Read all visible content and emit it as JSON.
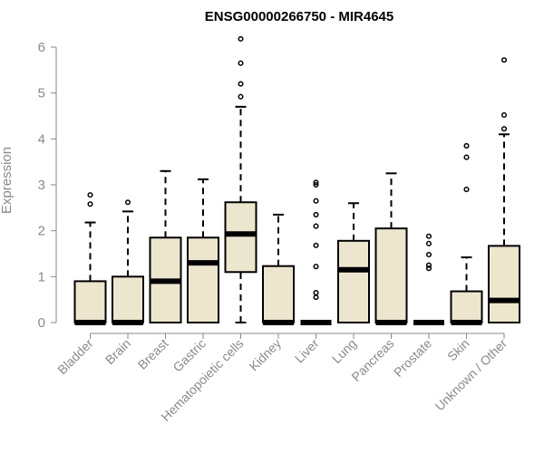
{
  "chart_data": {
    "type": "box",
    "title": "ENSG00000266750 - MIR4645",
    "xlabel": "",
    "ylabel": "Expression",
    "ylim": [
      0,
      6
    ],
    "yticks": [
      0,
      1,
      2,
      3,
      4,
      5,
      6
    ],
    "grid": false,
    "legend": "none",
    "box_fill_color": "#ede6cf",
    "box_stroke_color": "#000000",
    "categories": [
      "Bladder",
      "Brain",
      "Breast",
      "Gastric",
      "Hematopoietic cells",
      "Kidney",
      "Liver",
      "Lung",
      "Pancreas",
      "Prostate",
      "Skin",
      "Unknown / Other"
    ],
    "boxes": [
      {
        "category": "Bladder",
        "whisker_low": 0,
        "q1": 0,
        "median": 0,
        "q3": 0.9,
        "whisker_high": 2.18,
        "outliers": [
          2.58,
          2.78
        ]
      },
      {
        "category": "Brain",
        "whisker_low": 0,
        "q1": 0,
        "median": 0,
        "q3": 1.0,
        "whisker_high": 2.42,
        "outliers": [
          2.62
        ]
      },
      {
        "category": "Breast",
        "whisker_low": 0,
        "q1": 0,
        "median": 0.9,
        "q3": 1.85,
        "whisker_high": 3.3,
        "outliers": []
      },
      {
        "category": "Gastric",
        "whisker_low": 0,
        "q1": 0,
        "median": 1.3,
        "q3": 1.85,
        "whisker_high": 3.12,
        "outliers": []
      },
      {
        "category": "Hematopoietic cells",
        "whisker_low": 0,
        "q1": 1.1,
        "median": 1.93,
        "q3": 2.62,
        "whisker_high": 4.7,
        "outliers": [
          4.92,
          5.2,
          5.65,
          6.18
        ]
      },
      {
        "category": "Kidney",
        "whisker_low": 0,
        "q1": 0,
        "median": 0,
        "q3": 1.23,
        "whisker_high": 2.35,
        "outliers": []
      },
      {
        "category": "Liver",
        "whisker_low": 0,
        "q1": 0,
        "median": 0,
        "q3": 0,
        "whisker_high": 0,
        "outliers": [
          0.55,
          0.65,
          1.22,
          1.68,
          2.1,
          2.35,
          2.65,
          3.0,
          3.05
        ]
      },
      {
        "category": "Lung",
        "whisker_low": 0,
        "q1": 0,
        "median": 1.15,
        "q3": 1.78,
        "whisker_high": 2.6,
        "outliers": []
      },
      {
        "category": "Pancreas",
        "whisker_low": 0,
        "q1": 0,
        "median": 0,
        "q3": 2.05,
        "whisker_high": 3.25,
        "outliers": []
      },
      {
        "category": "Prostate",
        "whisker_low": 0,
        "q1": 0,
        "median": 0,
        "q3": 0,
        "whisker_high": 0,
        "outliers": [
          1.18,
          1.25,
          1.48,
          1.72,
          1.88
        ]
      },
      {
        "category": "Skin",
        "whisker_low": 0,
        "q1": 0,
        "median": 0,
        "q3": 0.68,
        "whisker_high": 1.42,
        "outliers": [
          2.9,
          3.6,
          3.85
        ]
      },
      {
        "category": "Unknown / Other",
        "whisker_low": 0,
        "q1": 0,
        "median": 0.48,
        "q3": 1.67,
        "whisker_high": 4.1,
        "outliers": [
          4.22,
          4.52,
          5.72
        ]
      }
    ]
  }
}
